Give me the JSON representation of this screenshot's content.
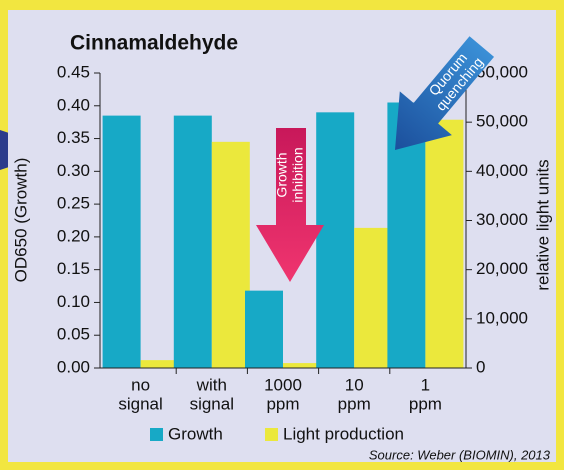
{
  "chart_data": {
    "type": "bar",
    "title": "Cinnamaldehyde",
    "y_label": "OD650 (Growth)",
    "y2_label": "relative light units",
    "categories": [
      [
        "no",
        "signal"
      ],
      [
        "with",
        "signal"
      ],
      [
        "1000",
        "ppm"
      ],
      [
        "10",
        "ppm"
      ],
      [
        "1",
        "ppm"
      ]
    ],
    "series": [
      {
        "name": "Growth",
        "color": "#17a9c6",
        "values": [
          0.385,
          0.385,
          0.118,
          0.39,
          0.405
        ]
      },
      {
        "name": "Light production",
        "color": "#ebe83c",
        "axis": "y2",
        "values": [
          1600,
          46000,
          1000,
          28500,
          50500
        ]
      }
    ],
    "ylim": [
      0,
      0.45
    ],
    "yticks": [
      {
        "value": 0,
        "label": "0.00"
      },
      {
        "value": 0.05,
        "label": "0.05"
      },
      {
        "value": 0.1,
        "label": "0.10"
      },
      {
        "value": 0.15,
        "label": "0.15"
      },
      {
        "value": 0.2,
        "label": "0.20"
      },
      {
        "value": 0.25,
        "label": "0.25"
      },
      {
        "value": 0.3,
        "label": "0.30"
      },
      {
        "value": 0.35,
        "label": "0.35"
      },
      {
        "value": 0.4,
        "label": "0.40"
      },
      {
        "value": 0.45,
        "label": "0.45"
      }
    ],
    "y2lim": [
      0,
      60000
    ],
    "y2ticks": [
      0,
      {
        "value": 10000,
        "label": "10,000"
      },
      {
        "value": 20000,
        "label": "20,000"
      },
      {
        "value": 30000,
        "label": "30,000"
      },
      {
        "value": 40000,
        "label": "40,000"
      },
      {
        "value": 50000,
        "label": "50,000"
      },
      {
        "value": 60000,
        "label": "60,000"
      }
    ],
    "annotations": [
      [
        "Quorum",
        "quenching"
      ],
      [
        "Growth",
        "inhibition"
      ]
    ],
    "source": "Source: Weber (BIOMIN), 2013",
    "legend": "bottom"
  }
}
